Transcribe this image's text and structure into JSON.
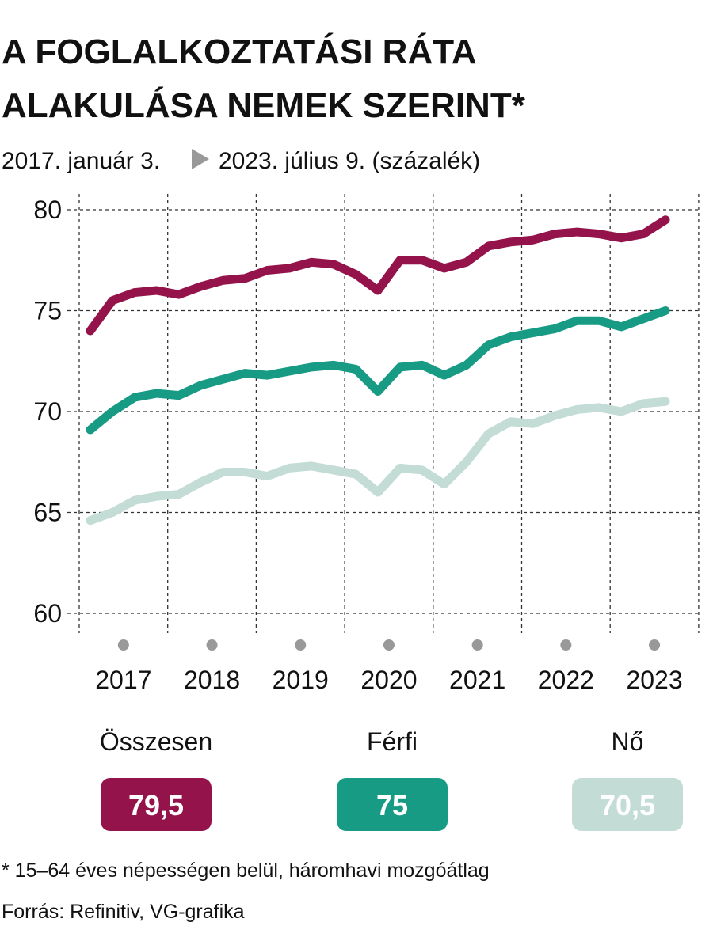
{
  "chart_data": {
    "type": "line",
    "title": [
      "A FOGLALKOZTATÁSI RÁTA",
      "ALAKULÁSA NEMEK SZERINT*"
    ],
    "subtitle_start": "2017. január 3.",
    "subtitle_end": "2023. július 9. (százalék)",
    "categories": [
      null,
      "2017",
      null,
      null,
      null,
      "2018",
      null,
      null,
      null,
      "2019",
      null,
      null,
      null,
      "2020",
      null,
      null,
      null,
      "2021",
      null,
      null,
      null,
      "2022",
      null,
      null,
      null,
      "2023",
      null
    ],
    "series": [
      {
        "name": "Összesen",
        "color": "#95134b",
        "label": "79,5",
        "values": [
          74.0,
          75.5,
          75.9,
          76.0,
          75.8,
          76.2,
          76.5,
          76.6,
          77.0,
          77.1,
          77.4,
          77.3,
          76.8,
          76.0,
          77.5,
          77.5,
          77.1,
          77.4,
          78.2,
          78.4,
          78.5,
          78.8,
          78.9,
          78.8,
          78.6,
          78.8,
          79.5
        ]
      },
      {
        "name": "Férfi",
        "color": "#189b84",
        "label": "75",
        "values": [
          69.1,
          70.0,
          70.7,
          70.9,
          70.8,
          71.3,
          71.6,
          71.9,
          71.8,
          72.0,
          72.2,
          72.3,
          72.1,
          71.0,
          72.2,
          72.3,
          71.8,
          72.3,
          73.3,
          73.7,
          73.9,
          74.1,
          74.5,
          74.5,
          74.2,
          74.6,
          75
        ]
      },
      {
        "name": "Nő",
        "color": "#c3ddd6",
        "label": "70,5",
        "values": [
          64.6,
          65.0,
          65.6,
          65.8,
          65.9,
          66.5,
          67.0,
          67.0,
          66.8,
          67.2,
          67.3,
          67.1,
          66.9,
          66.0,
          67.2,
          67.1,
          66.4,
          67.5,
          68.9,
          69.5,
          69.4,
          69.8,
          70.1,
          70.2,
          70.0,
          70.4,
          70.5
        ]
      }
    ],
    "ylim": [
      60,
      80
    ],
    "yticks": [
      60,
      65,
      70,
      75,
      80
    ],
    "grid": true,
    "footnote": "* 15–64 éves népességen belül, háromhavi mozgóátlag",
    "source": "Forrás: Refinitiv, VG-grafika"
  }
}
